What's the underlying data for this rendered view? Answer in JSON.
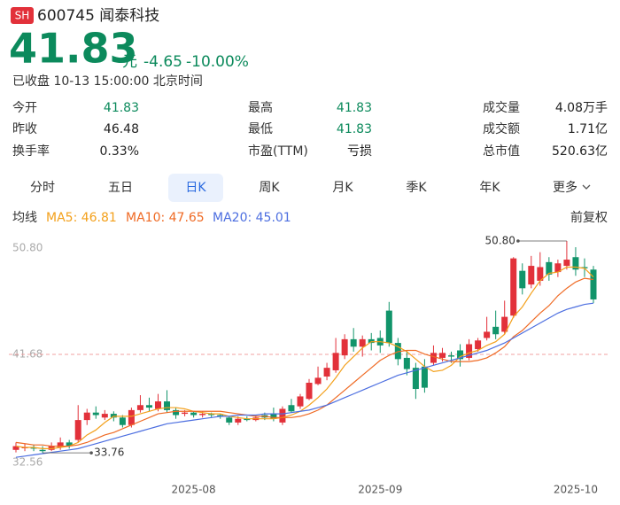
{
  "header": {
    "badge": "SH",
    "title": "600745 闻泰科技"
  },
  "quote": {
    "price": "41.83",
    "unit": "元",
    "change": "-4.65",
    "change_pct": "-10.00%",
    "status": "已收盘 10-13 15:00:00 北京时间"
  },
  "stats": [
    [
      [
        "今开",
        "41.83"
      ],
      [
        "最高",
        "41.83"
      ],
      [
        "成交量",
        "4.08万手"
      ]
    ],
    [
      [
        "昨收",
        "46.48"
      ],
      [
        "最低",
        "41.83"
      ],
      [
        "成交额",
        "1.71亿"
      ]
    ],
    [
      [
        "换手率",
        "0.33%"
      ],
      [
        "市盈(TTM)",
        "亏损"
      ],
      [
        "总市值",
        "520.63亿"
      ]
    ]
  ],
  "tabs": [
    "分时",
    "五日",
    "日K",
    "周K",
    "月K",
    "季K",
    "年K",
    "更多"
  ],
  "active_tab": "日K",
  "ma_title": "均线",
  "adjust": "前复权",
  "chart_data": {
    "type": "candlestick",
    "ylim": [
      32.56,
      50.8
    ],
    "yticks": [
      {
        "value": 50.8,
        "label": "50.80"
      },
      {
        "value": 41.68,
        "label": "41.68"
      },
      {
        "value": 32.56,
        "label": "32.56"
      }
    ],
    "categories": [
      null,
      null,
      null,
      null,
      null,
      null,
      null,
      null,
      null,
      null,
      null,
      null,
      null,
      null,
      null,
      null,
      null,
      null,
      null,
      null,
      "2025-08",
      null,
      null,
      null,
      null,
      null,
      null,
      null,
      null,
      null,
      null,
      null,
      null,
      null,
      null,
      null,
      null,
      null,
      null,
      null,
      null,
      "2025-09",
      null,
      null,
      null,
      null,
      null,
      null,
      null,
      null,
      null,
      null,
      null,
      null,
      null,
      null,
      null,
      null,
      null,
      null,
      null,
      null,
      null,
      "2025-10",
      null,
      null
    ],
    "up_color": "#e2313a",
    "down_color": "#11946a",
    "candles": {
      "open": [
        34.0,
        34.2,
        34.2,
        34.0,
        34.0,
        34.2,
        34.6,
        34.8,
        36.4,
        37.0,
        36.6,
        36.9,
        36.6,
        36.0,
        37.2,
        37.6,
        37.3,
        37.9,
        37.2,
        36.9,
        37.0,
        36.8,
        36.9,
        36.8,
        36.6,
        36.2,
        36.5,
        36.4,
        36.8,
        36.9,
        36.2,
        37.6,
        37.5,
        38.1,
        39.3,
        39.9,
        40.4,
        41.6,
        42.9,
        42.3,
        42.9,
        43.0,
        45.2,
        42.6,
        41.4,
        40.6,
        40.7,
        41.0,
        41.4,
        41.6,
        42.0,
        41.4,
        42.1,
        43.0,
        43.9,
        43.5,
        44.8,
        48.4,
        47.3,
        47.6,
        49.1,
        48.3,
        48.8,
        49.5,
        48.7,
        48.5
      ],
      "high": [
        34.6,
        34.5,
        34.4,
        34.3,
        34.6,
        35.0,
        34.8,
        37.6,
        37.3,
        37.5,
        37.2,
        37.1,
        36.8,
        37.4,
        38.4,
        38.2,
        38.5,
        38.8,
        37.4,
        37.2,
        37.1,
        37.1,
        37.0,
        36.9,
        36.7,
        36.7,
        36.7,
        36.8,
        37.0,
        37.4,
        37.5,
        38.1,
        38.5,
        39.7,
        40.7,
        41.0,
        43.0,
        43.3,
        43.8,
        43.2,
        43.4,
        43.6,
        45.9,
        43.0,
        42.0,
        41.0,
        41.3,
        42.4,
        42.2,
        41.9,
        42.5,
        42.9,
        43.0,
        44.7,
        45.2,
        46.0,
        49.5,
        49.0,
        49.6,
        49.9,
        49.5,
        49.3,
        50.8,
        50.3,
        49.4,
        48.8
      ],
      "low": [
        33.8,
        33.9,
        33.9,
        33.76,
        33.9,
        34.0,
        34.1,
        34.6,
        36.0,
        36.5,
        36.4,
        36.3,
        35.8,
        35.8,
        37.0,
        37.1,
        37.1,
        37.0,
        36.5,
        36.7,
        36.6,
        36.6,
        36.6,
        36.5,
        36.0,
        36.0,
        36.3,
        36.3,
        36.4,
        36.3,
        36.0,
        37.0,
        37.3,
        38.0,
        39.2,
        39.6,
        40.2,
        41.3,
        41.9,
        41.5,
        42.0,
        41.8,
        42.3,
        40.8,
        40.0,
        38.1,
        38.6,
        40.8,
        41.1,
        41.0,
        40.7,
        41.2,
        41.9,
        42.8,
        42.9,
        43.3,
        44.6,
        46.5,
        47.0,
        47.2,
        47.6,
        47.9,
        48.5,
        48.0,
        47.9,
        45.8
      ],
      "close": [
        34.3,
        34.2,
        34.1,
        33.9,
        34.3,
        34.6,
        34.3,
        36.4,
        37.0,
        36.8,
        36.9,
        36.6,
        36.0,
        37.2,
        37.6,
        37.4,
        37.9,
        37.2,
        36.8,
        37.0,
        36.8,
        36.9,
        36.8,
        36.7,
        36.2,
        36.5,
        36.4,
        36.6,
        36.6,
        36.5,
        37.3,
        37.1,
        38.3,
        39.4,
        39.8,
        40.6,
        41.8,
        42.9,
        42.3,
        42.9,
        42.6,
        42.4,
        42.6,
        41.3,
        40.5,
        38.9,
        39.0,
        41.8,
        41.8,
        41.5,
        41.3,
        42.5,
        42.8,
        43.5,
        43.3,
        44.7,
        49.4,
        47.0,
        48.8,
        48.7,
        48.1,
        49.0,
        49.3,
        48.5,
        48.6,
        46.1
      ]
    },
    "ma": [
      {
        "name": "MA5: 46.81",
        "color": "#f3a01b",
        "values": [
          34.3,
          34.2,
          34.2,
          34.1,
          34.1,
          34.2,
          34.3,
          34.6,
          35.2,
          35.6,
          36.2,
          36.7,
          36.7,
          36.7,
          36.9,
          37.1,
          37.3,
          37.4,
          37.4,
          37.3,
          37.1,
          37.0,
          36.9,
          36.9,
          36.7,
          36.6,
          36.5,
          36.5,
          36.5,
          36.5,
          36.6,
          36.8,
          37.1,
          37.6,
          38.2,
          38.9,
          39.8,
          40.8,
          41.5,
          42.2,
          42.7,
          42.7,
          42.6,
          42.3,
          41.9,
          41.3,
          40.7,
          40.3,
          40.4,
          40.8,
          41.5,
          41.8,
          42.0,
          42.4,
          42.7,
          43.3,
          44.7,
          45.5,
          46.6,
          47.6,
          48.2,
          48.3,
          48.7,
          48.7,
          48.6,
          47.9
        ]
      },
      {
        "name": "MA10: 47.65",
        "color": "#ef6a24",
        "values": [
          34.6,
          34.5,
          34.4,
          34.4,
          34.3,
          34.3,
          34.3,
          34.4,
          34.6,
          34.9,
          35.2,
          35.4,
          35.7,
          36.0,
          36.3,
          36.6,
          36.9,
          37.0,
          37.1,
          37.1,
          37.1,
          37.1,
          37.1,
          37.1,
          37.0,
          36.9,
          36.8,
          36.7,
          36.7,
          36.6,
          36.6,
          36.6,
          36.7,
          36.9,
          37.2,
          37.6,
          38.2,
          38.8,
          39.4,
          40.0,
          40.6,
          41.2,
          41.6,
          41.9,
          42.0,
          42.0,
          41.7,
          41.5,
          41.3,
          41.1,
          41.1,
          41.1,
          41.2,
          41.4,
          41.8,
          42.3,
          43.1,
          43.6,
          44.3,
          45.0,
          45.6,
          46.4,
          47.0,
          47.5,
          47.8,
          47.7
        ]
      },
      {
        "name": "MA20: 45.01",
        "color": "#4c6ee0",
        "values": [
          33.4,
          33.5,
          33.6,
          33.7,
          33.8,
          33.9,
          34.0,
          34.1,
          34.3,
          34.5,
          34.7,
          34.9,
          35.1,
          35.3,
          35.5,
          35.7,
          35.9,
          36.1,
          36.2,
          36.3,
          36.4,
          36.5,
          36.6,
          36.7,
          36.7,
          36.8,
          36.8,
          36.8,
          36.9,
          36.9,
          36.9,
          37.0,
          37.1,
          37.2,
          37.4,
          37.6,
          37.9,
          38.2,
          38.5,
          38.8,
          39.1,
          39.4,
          39.7,
          40.0,
          40.2,
          40.4,
          40.6,
          40.8,
          41.0,
          41.2,
          41.4,
          41.6,
          41.8,
          42.0,
          42.3,
          42.6,
          43.0,
          43.4,
          43.8,
          44.2,
          44.6,
          45.0,
          45.3,
          45.5,
          45.7,
          45.8
        ]
      }
    ],
    "max_annotation": {
      "value": 50.8,
      "label": "50.80"
    },
    "min_annotation": {
      "value": 33.76,
      "label": "33.76"
    }
  }
}
